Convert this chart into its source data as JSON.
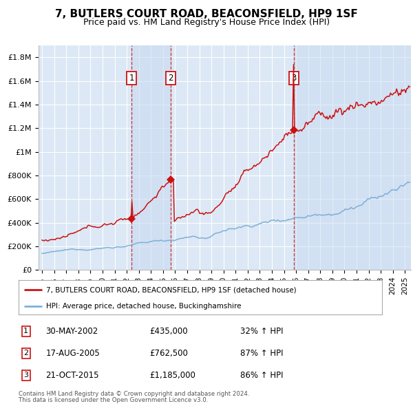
{
  "title": "7, BUTLERS COURT ROAD, BEACONSFIELD, HP9 1SF",
  "subtitle": "Price paid vs. HM Land Registry's House Price Index (HPI)",
  "title_fontsize": 11,
  "subtitle_fontsize": 9,
  "plot_bg_color": "#dce8f5",
  "grid_color": "#ffffff",
  "red_line_color": "#cc1111",
  "blue_line_color": "#7fb0d8",
  "shade_color": "#c8daf0",
  "transactions": [
    {
      "num": 1,
      "date_str": "30-MAY-2002",
      "date_x": 2002.41,
      "price": 435000,
      "pct": "32%",
      "dir": "↑"
    },
    {
      "num": 2,
      "date_str": "17-AUG-2005",
      "date_x": 2005.62,
      "price": 762500,
      "pct": "87%",
      "dir": "↑"
    },
    {
      "num": 3,
      "date_str": "21-OCT-2015",
      "date_x": 2015.8,
      "price": 1185000,
      "pct": "86%",
      "dir": "↑"
    }
  ],
  "legend_red_label": "7, BUTLERS COURT ROAD, BEACONSFIELD, HP9 1SF (detached house)",
  "legend_blue_label": "HPI: Average price, detached house, Buckinghamshire",
  "footer1": "Contains HM Land Registry data © Crown copyright and database right 2024.",
  "footer2": "This data is licensed under the Open Government Licence v3.0.",
  "ylim": [
    0,
    1900000
  ],
  "yticks": [
    0,
    200000,
    400000,
    600000,
    800000,
    1000000,
    1200000,
    1400000,
    1600000,
    1800000
  ],
  "ytick_labels": [
    "£0",
    "£200K",
    "£400K",
    "£600K",
    "£800K",
    "£1M",
    "£1.2M",
    "£1.4M",
    "£1.6M",
    "£1.8M"
  ],
  "xlim_start": 1994.7,
  "xlim_end": 2025.5,
  "xticks": [
    1995,
    1996,
    1997,
    1998,
    1999,
    2000,
    2001,
    2002,
    2003,
    2004,
    2005,
    2006,
    2007,
    2008,
    2009,
    2010,
    2011,
    2012,
    2013,
    2014,
    2015,
    2016,
    2017,
    2018,
    2019,
    2020,
    2021,
    2022,
    2023,
    2024,
    2025
  ]
}
